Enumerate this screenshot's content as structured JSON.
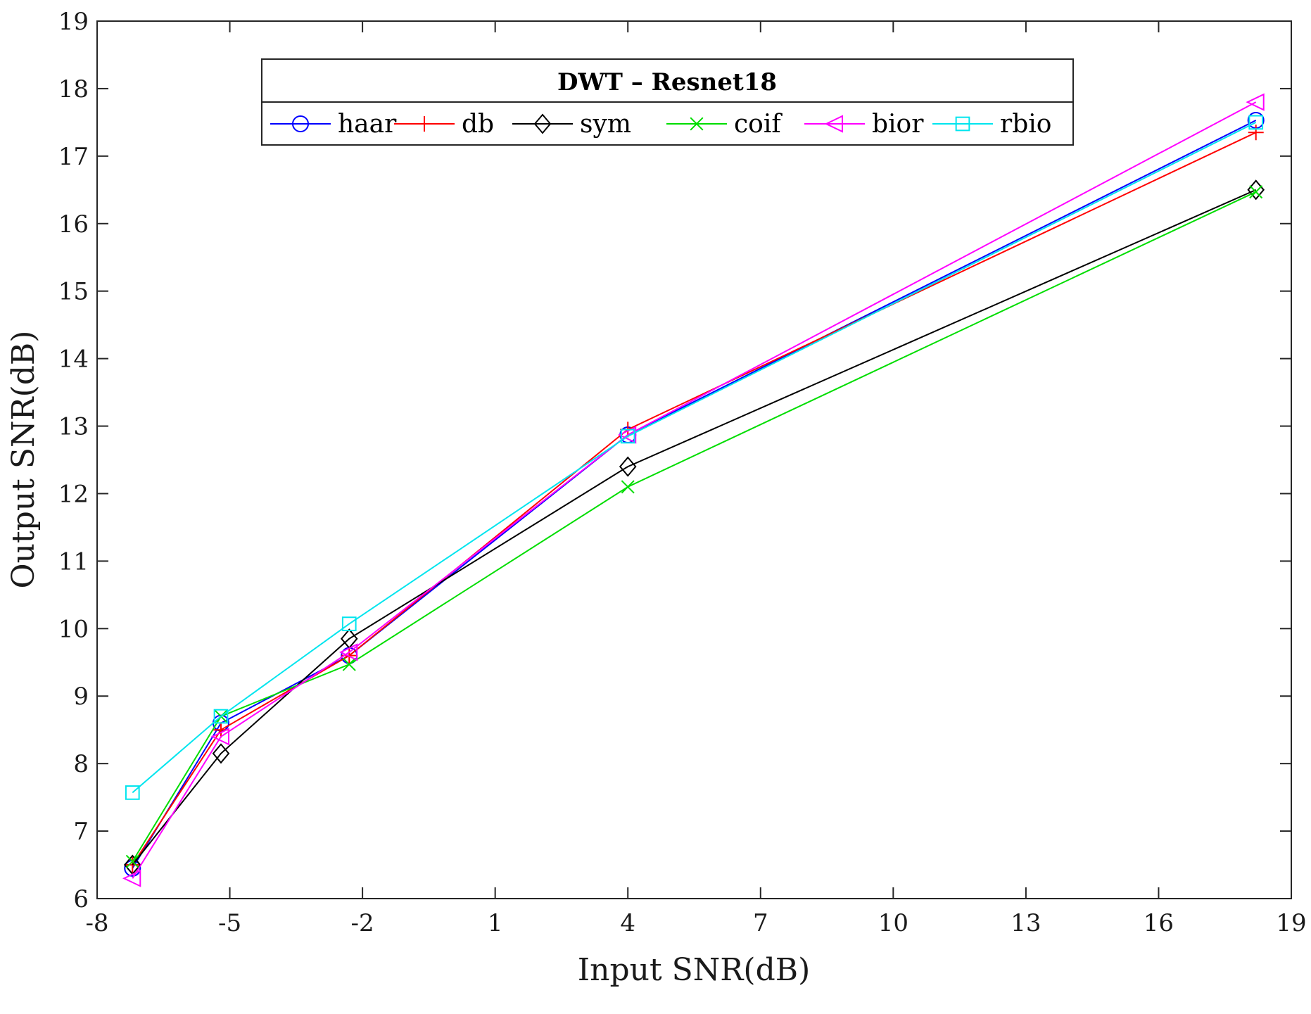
{
  "chart_data": {
    "type": "line",
    "title": "DWT – Resnet18",
    "xlabel": "Input SNR(dB)",
    "ylabel": "Output SNR(dB)",
    "xlim": [
      -8,
      19
    ],
    "ylim": [
      6,
      19
    ],
    "xticks": [
      -8,
      -5,
      -2,
      1,
      4,
      7,
      10,
      13,
      16,
      19
    ],
    "yticks": [
      6,
      7,
      8,
      9,
      10,
      11,
      12,
      13,
      14,
      15,
      16,
      17,
      18,
      19
    ],
    "x": [
      -7.2,
      -5.2,
      -2.3,
      4,
      18.2
    ],
    "series": [
      {
        "name": "haar",
        "color": "#0000ff",
        "marker": "circle",
        "values": [
          6.45,
          8.6,
          9.6,
          12.87,
          17.53
        ]
      },
      {
        "name": "db",
        "color": "#ff0000",
        "marker": "plus",
        "values": [
          6.5,
          8.5,
          9.6,
          12.95,
          17.35
        ]
      },
      {
        "name": "sym",
        "color": "#000000",
        "marker": "diamond",
        "values": [
          6.5,
          8.15,
          9.85,
          12.4,
          16.5
        ]
      },
      {
        "name": "coif",
        "color": "#00dd00",
        "marker": "x",
        "values": [
          6.55,
          8.7,
          9.47,
          12.1,
          16.47
        ]
      },
      {
        "name": "bior",
        "color": "#ff00ff",
        "marker": "triangle-left",
        "values": [
          6.3,
          8.4,
          9.65,
          12.87,
          17.8
        ]
      },
      {
        "name": "rbio",
        "color": "#00e5ee",
        "marker": "square",
        "values": [
          7.57,
          8.7,
          10.07,
          12.85,
          17.5
        ]
      }
    ],
    "grid": false,
    "legend_position": "top-center"
  }
}
